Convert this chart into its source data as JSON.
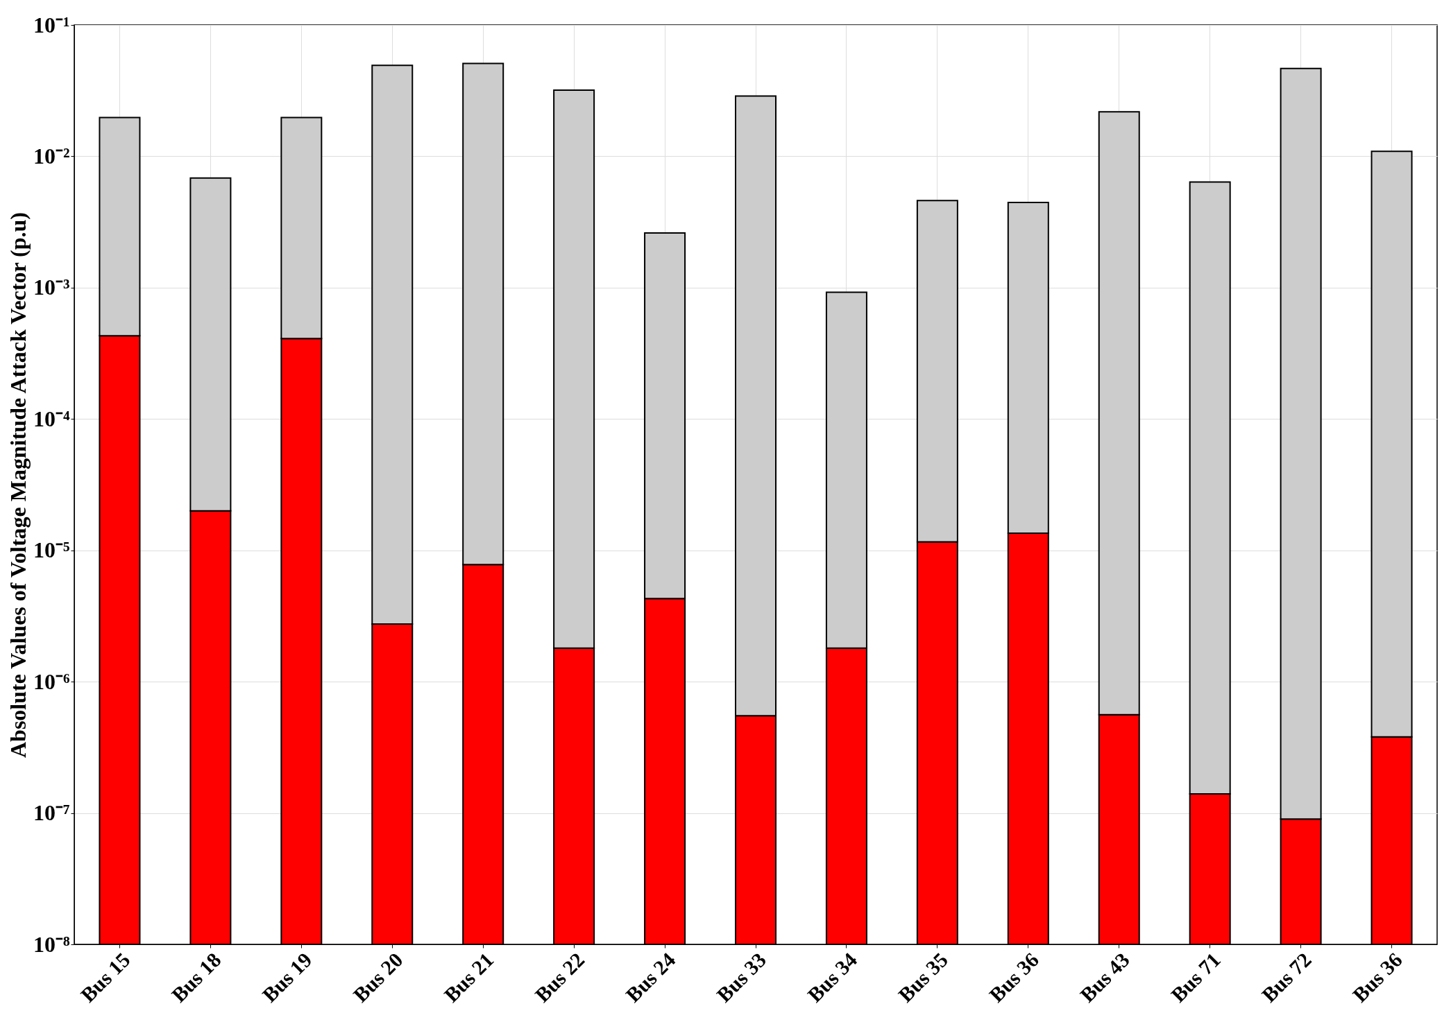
{
  "chart_data": {
    "type": "bar",
    "ylabel": "Absolute Values of Voltage Magnitude Attack Vector (p.u)",
    "categories": [
      "Bus 15",
      "Bus 18",
      "Bus 19",
      "Bus 20",
      "Bus 21",
      "Bus 22",
      "Bus 24",
      "Bus 33",
      "Bus 34",
      "Bus 35",
      "Bus 36",
      "Bus 43",
      "Bus 71",
      "Bus 72",
      "Bus 36"
    ],
    "series": [
      {
        "color": "#ff0000",
        "values": [
          0.00043,
          2e-05,
          0.00041,
          2.75e-06,
          7.8e-06,
          1.8e-06,
          4.3e-06,
          5.5e-07,
          1.8e-06,
          1.16e-05,
          1.35e-05,
          5.6e-07,
          1.4e-07,
          9e-08,
          3.8e-07
        ]
      },
      {
        "color": "#cccccc",
        "values": [
          0.0193,
          0.00682,
          0.0193,
          0.0492,
          0.0509,
          0.0319,
          0.0026,
          0.0288,
          0.00092,
          0.00459,
          0.00444,
          0.0218,
          0.00638,
          0.0467,
          0.0109
        ]
      }
    ],
    "stacked": true,
    "log": "y",
    "ylim": [
      1e-08,
      0.1
    ],
    "yticks": [
      {
        "value": 1e-08,
        "label": "10⁻⁸"
      },
      {
        "value": 1e-07,
        "label": "10⁻⁷"
      },
      {
        "value": 1e-06,
        "label": "10⁻⁶"
      },
      {
        "value": 1e-05,
        "label": "10⁻⁵"
      },
      {
        "value": 0.0001,
        "label": "10⁻⁴"
      },
      {
        "value": 0.001,
        "label": "10⁻³"
      },
      {
        "value": 0.01,
        "label": "10⁻²"
      },
      {
        "value": 0.1,
        "label": "10⁻¹"
      }
    ],
    "grid": true
  }
}
